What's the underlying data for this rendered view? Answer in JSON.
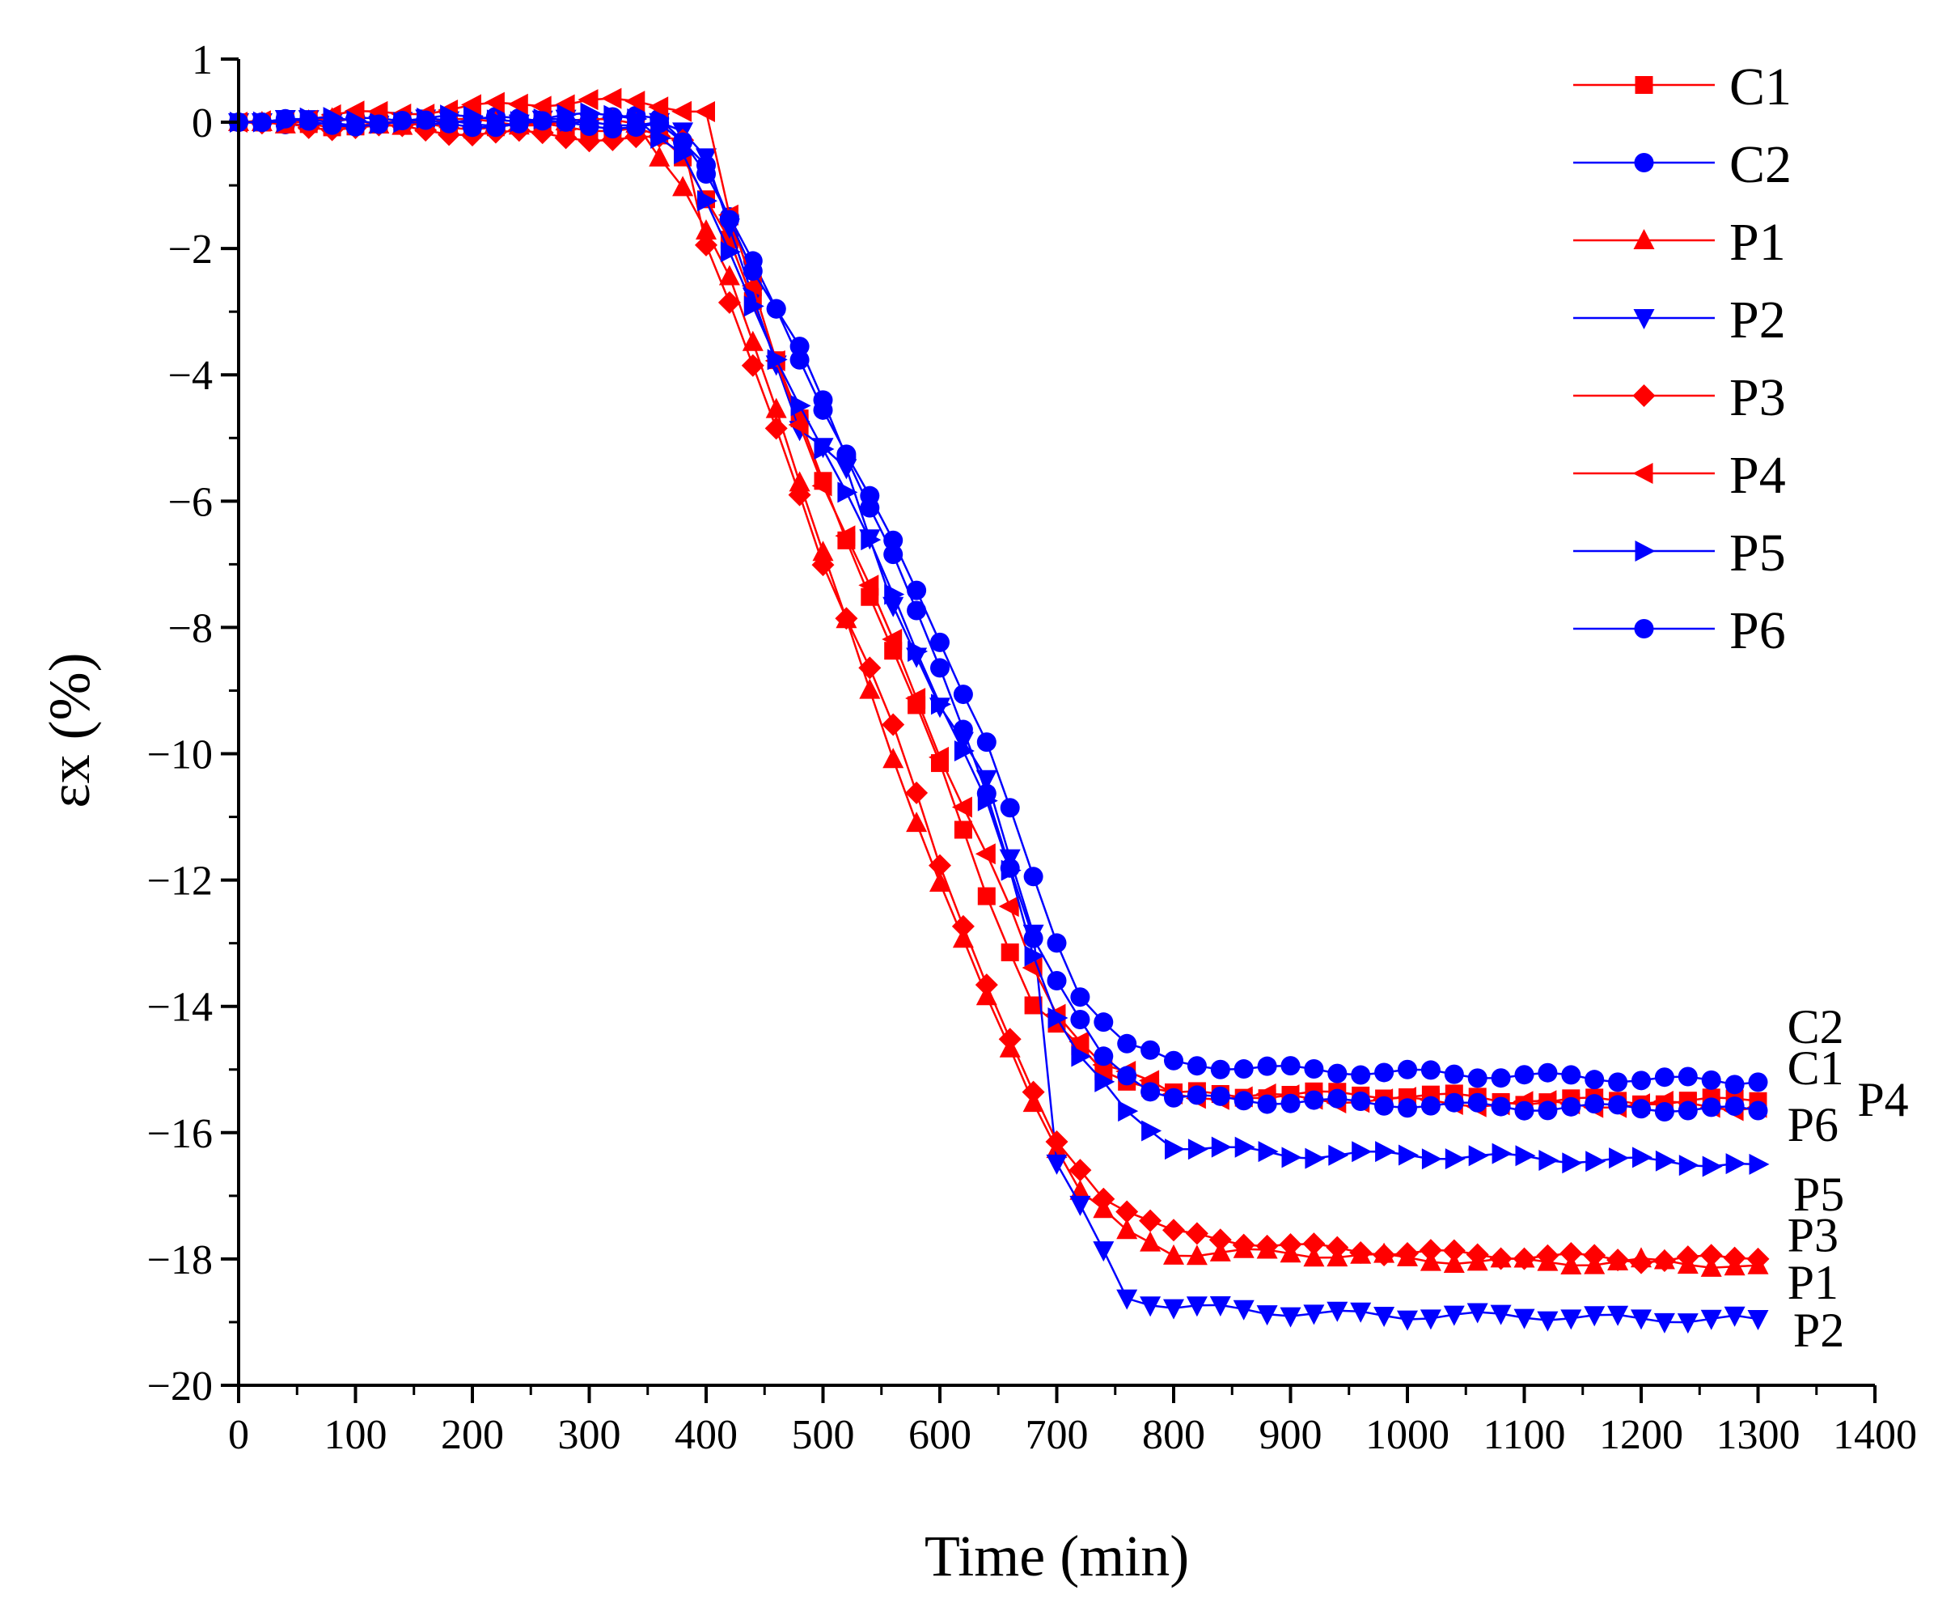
{
  "chart_data": {
    "type": "line",
    "title": "",
    "xlabel": "Time (min)",
    "ylabel": "εx (%)",
    "xlim": [
      0,
      1400
    ],
    "ylim": [
      -20,
      1
    ],
    "x_ticks": [
      0,
      100,
      200,
      300,
      400,
      500,
      600,
      700,
      800,
      900,
      1000,
      1100,
      1200,
      1300,
      1400
    ],
    "y_ticks": [
      1,
      0,
      -2,
      -4,
      -6,
      -8,
      -10,
      -12,
      -14,
      -16,
      -18,
      -20
    ],
    "x_tick_labels": [
      "0",
      "100",
      "200",
      "300",
      "400",
      "500",
      "600",
      "700",
      "800",
      "900",
      "1000",
      "1100",
      "1200",
      "1300",
      "1400"
    ],
    "y_tick_labels": [
      "1",
      "0",
      "−2",
      "−4",
      "−6",
      "−8",
      "−10",
      "−12",
      "−14",
      "−16",
      "−18",
      "−20"
    ],
    "legend_position": "top-right",
    "series": [
      {
        "name": "C1",
        "color": "#ff0000",
        "marker": "square",
        "knots": [
          [
            0,
            0
          ],
          [
            350,
            -0.1
          ],
          [
            380,
            -0.6
          ],
          [
            420,
            -1.8
          ],
          [
            460,
            -3.8
          ],
          [
            500,
            -5.7
          ],
          [
            550,
            -7.9
          ],
          [
            600,
            -10.2
          ],
          [
            640,
            -12.2
          ],
          [
            680,
            -14.0
          ],
          [
            740,
            -15.0
          ],
          [
            800,
            -15.4
          ],
          [
            900,
            -15.4
          ],
          [
            1000,
            -15.4
          ],
          [
            1100,
            -15.5
          ],
          [
            1200,
            -15.5
          ],
          [
            1300,
            -15.5
          ]
        ]
      },
      {
        "name": "C2",
        "color": "#0000ff",
        "marker": "circle",
        "knots": [
          [
            0,
            0
          ],
          [
            360,
            0.05
          ],
          [
            390,
            -0.4
          ],
          [
            420,
            -1.5
          ],
          [
            460,
            -3.0
          ],
          [
            500,
            -4.5
          ],
          [
            550,
            -6.3
          ],
          [
            600,
            -8.2
          ],
          [
            640,
            -9.8
          ],
          [
            680,
            -12.0
          ],
          [
            700,
            -13.0
          ],
          [
            720,
            -13.8
          ],
          [
            760,
            -14.6
          ],
          [
            800,
            -14.9
          ],
          [
            900,
            -15.0
          ],
          [
            1000,
            -15.05
          ],
          [
            1100,
            -15.1
          ],
          [
            1200,
            -15.15
          ],
          [
            1300,
            -15.2
          ]
        ]
      },
      {
        "name": "P1",
        "color": "#ff0000",
        "marker": "triangle-up",
        "knots": [
          [
            0,
            0
          ],
          [
            340,
            0.0
          ],
          [
            380,
            -1.0
          ],
          [
            420,
            -2.5
          ],
          [
            460,
            -4.5
          ],
          [
            500,
            -6.8
          ],
          [
            550,
            -9.6
          ],
          [
            600,
            -12.0
          ],
          [
            640,
            -13.9
          ],
          [
            680,
            -15.5
          ],
          [
            720,
            -16.9
          ],
          [
            760,
            -17.6
          ],
          [
            800,
            -17.9
          ],
          [
            900,
            -17.9
          ],
          [
            1000,
            -18.0
          ],
          [
            1100,
            -18.05
          ],
          [
            1200,
            -18.05
          ],
          [
            1300,
            -18.1
          ]
        ]
      },
      {
        "name": "P2",
        "color": "#0000ff",
        "marker": "triangle-down",
        "knots": [
          [
            0,
            0
          ],
          [
            370,
            0.0
          ],
          [
            400,
            -0.6
          ],
          [
            440,
            -2.7
          ],
          [
            480,
            -4.9
          ],
          [
            520,
            -5.5
          ],
          [
            560,
            -7.6
          ],
          [
            600,
            -9.3
          ],
          [
            640,
            -10.4
          ],
          [
            680,
            -12.8
          ],
          [
            700,
            -16.5
          ],
          [
            720,
            -17.2
          ],
          [
            760,
            -18.6
          ],
          [
            800,
            -18.75
          ],
          [
            900,
            -18.85
          ],
          [
            1000,
            -18.9
          ],
          [
            1100,
            -18.9
          ],
          [
            1200,
            -18.95
          ],
          [
            1300,
            -18.95
          ]
        ]
      },
      {
        "name": "P3",
        "color": "#ff0000",
        "marker": "diamond",
        "knots": [
          [
            0,
            0
          ],
          [
            380,
            -0.3
          ],
          [
            400,
            -1.9
          ],
          [
            420,
            -2.8
          ],
          [
            460,
            -4.9
          ],
          [
            500,
            -7.0
          ],
          [
            550,
            -9.0
          ],
          [
            600,
            -11.8
          ],
          [
            640,
            -13.6
          ],
          [
            680,
            -15.4
          ],
          [
            700,
            -16.2
          ],
          [
            740,
            -17.0
          ],
          [
            800,
            -17.6
          ],
          [
            900,
            -17.8
          ],
          [
            1000,
            -17.9
          ],
          [
            1100,
            -17.95
          ],
          [
            1200,
            -18.0
          ],
          [
            1300,
            -18.0
          ]
        ]
      },
      {
        "name": "P4",
        "color": "#ff0000",
        "marker": "triangle-left",
        "knots": [
          [
            0,
            0
          ],
          [
            300,
            0.35
          ],
          [
            400,
            0.2
          ],
          [
            420,
            -1.5
          ],
          [
            460,
            -3.8
          ],
          [
            500,
            -5.7
          ],
          [
            550,
            -7.8
          ],
          [
            600,
            -10.0
          ],
          [
            650,
            -12.0
          ],
          [
            690,
            -13.9
          ],
          [
            740,
            -14.9
          ],
          [
            800,
            -15.4
          ],
          [
            900,
            -15.45
          ],
          [
            1000,
            -15.5
          ],
          [
            1100,
            -15.55
          ],
          [
            1200,
            -15.55
          ],
          [
            1300,
            -15.6
          ]
        ]
      },
      {
        "name": "P5",
        "color": "#0000ff",
        "marker": "triangle-right",
        "knots": [
          [
            0,
            0
          ],
          [
            340,
            0.1
          ],
          [
            380,
            -0.5
          ],
          [
            420,
            -2.1
          ],
          [
            460,
            -3.7
          ],
          [
            500,
            -5.2
          ],
          [
            550,
            -7.0
          ],
          [
            600,
            -9.2
          ],
          [
            650,
            -11.2
          ],
          [
            690,
            -13.8
          ],
          [
            720,
            -14.8
          ],
          [
            760,
            -15.7
          ],
          [
            800,
            -16.2
          ],
          [
            900,
            -16.35
          ],
          [
            1000,
            -16.35
          ],
          [
            1100,
            -16.4
          ],
          [
            1200,
            -16.45
          ],
          [
            1300,
            -16.5
          ]
        ]
      },
      {
        "name": "P6",
        "color": "#0000ff",
        "marker": "circle",
        "knots": [
          [
            0,
            0
          ],
          [
            360,
            -0.05
          ],
          [
            400,
            -0.7
          ],
          [
            440,
            -2.3
          ],
          [
            480,
            -3.6
          ],
          [
            520,
            -5.3
          ],
          [
            560,
            -6.8
          ],
          [
            600,
            -8.7
          ],
          [
            640,
            -10.6
          ],
          [
            680,
            -12.9
          ],
          [
            710,
            -14.0
          ],
          [
            740,
            -14.8
          ],
          [
            780,
            -15.3
          ],
          [
            800,
            -15.45
          ],
          [
            900,
            -15.5
          ],
          [
            1000,
            -15.55
          ],
          [
            1100,
            -15.6
          ],
          [
            1200,
            -15.6
          ],
          [
            1300,
            -15.65
          ]
        ]
      }
    ],
    "end_labels": [
      {
        "text": "C2",
        "x": 1325,
        "y": -14.3
      },
      {
        "text": "C1",
        "x": 1325,
        "y": -14.95
      },
      {
        "text": "P4",
        "x": 1385,
        "y": -15.45
      },
      {
        "text": "P6",
        "x": 1325,
        "y": -15.85
      },
      {
        "text": "P5",
        "x": 1330,
        "y": -16.95
      },
      {
        "text": "P3",
        "x": 1325,
        "y": -17.6
      },
      {
        "text": "P1",
        "x": 1325,
        "y": -18.35
      },
      {
        "text": "P2",
        "x": 1330,
        "y": -19.1
      }
    ]
  }
}
